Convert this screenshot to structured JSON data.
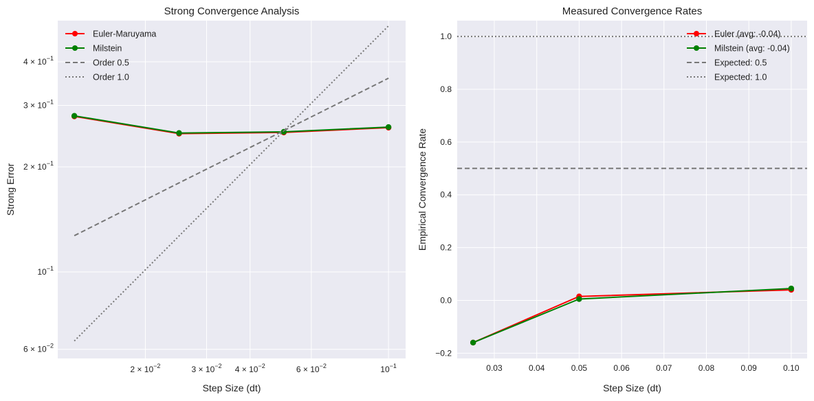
{
  "chart_data": [
    {
      "type": "line",
      "title": "Strong Convergence Analysis",
      "xlabel": "Step Size (dt)",
      "ylabel": "Strong Error",
      "xscale": "log",
      "yscale": "log",
      "xlim": [
        0.0112,
        0.112
      ],
      "ylim": [
        0.0565,
        0.525
      ],
      "grid": true,
      "legend_position": "top-left",
      "x": [
        0.0125,
        0.025,
        0.05,
        0.1
      ],
      "xticks": [
        {
          "value": 0.02,
          "label": "2 × 10^-2",
          "mant": "2",
          "exp": "−2"
        },
        {
          "value": 0.03,
          "label": "3 × 10^-2",
          "mant": "3",
          "exp": "−2"
        },
        {
          "value": 0.04,
          "label": "4 × 10^-2",
          "mant": "4",
          "exp": "−2"
        },
        {
          "value": 0.06,
          "label": "6 × 10^-2",
          "mant": "6",
          "exp": "−2"
        },
        {
          "value": 0.1,
          "label": "10^-1",
          "mant": "",
          "exp": "−1"
        }
      ],
      "yticks": [
        {
          "value": 0.06,
          "label": "6 × 10^-2",
          "mant": "6",
          "exp": "−2"
        },
        {
          "value": 0.1,
          "label": "10^-1",
          "mant": "",
          "exp": "−1"
        },
        {
          "value": 0.2,
          "label": "2 × 10^-1",
          "mant": "2",
          "exp": "−1"
        },
        {
          "value": 0.3,
          "label": "3 × 10^-1",
          "mant": "3",
          "exp": "−1"
        },
        {
          "value": 0.4,
          "label": "4 × 10^-1",
          "mant": "4",
          "exp": "−1"
        }
      ],
      "series": [
        {
          "name": "Euler-Maruyama",
          "color": "#ff0000",
          "style": "solid",
          "marker": true,
          "values": [
            0.279,
            0.249,
            0.251,
            0.259
          ]
        },
        {
          "name": "Milstein",
          "color": "#008000",
          "style": "solid",
          "marker": true,
          "values": [
            0.28,
            0.25,
            0.252,
            0.26
          ]
        },
        {
          "name": "Order 0.5",
          "color": "#777777",
          "style": "dashed",
          "marker": false,
          "values": [
            0.127,
            0.18,
            0.254,
            0.359
          ]
        },
        {
          "name": "Order 1.0",
          "color": "#777777",
          "style": "dotted",
          "marker": false,
          "values": [
            0.0634,
            0.1268,
            0.2537,
            0.507
          ]
        }
      ]
    },
    {
      "type": "line",
      "title": "Measured Convergence Rates",
      "xlabel": "Step Size (dt)",
      "ylabel": "Empirical Convergence Rate",
      "xscale": "linear",
      "yscale": "linear",
      "xlim": [
        0.02125,
        0.10375
      ],
      "ylim": [
        -0.22,
        1.06
      ],
      "grid": true,
      "legend_position": "top-right",
      "xticks": [
        {
          "value": 0.03,
          "label": "0.03"
        },
        {
          "value": 0.04,
          "label": "0.04"
        },
        {
          "value": 0.05,
          "label": "0.05"
        },
        {
          "value": 0.06,
          "label": "0.06"
        },
        {
          "value": 0.07,
          "label": "0.07"
        },
        {
          "value": 0.08,
          "label": "0.08"
        },
        {
          "value": 0.09,
          "label": "0.09"
        },
        {
          "value": 0.1,
          "label": "0.10"
        }
      ],
      "yticks": [
        {
          "value": -0.2,
          "label": "−0.2"
        },
        {
          "value": 0.0,
          "label": "0.0"
        },
        {
          "value": 0.2,
          "label": "0.2"
        },
        {
          "value": 0.4,
          "label": "0.4"
        },
        {
          "value": 0.6,
          "label": "0.6"
        },
        {
          "value": 0.8,
          "label": "0.8"
        },
        {
          "value": 1.0,
          "label": "1.0"
        }
      ],
      "x": [
        0.025,
        0.05,
        0.1
      ],
      "series": [
        {
          "name": "Euler (avg: -0.04)",
          "color": "#ff0000",
          "style": "solid",
          "marker": true,
          "values": [
            -0.16,
            0.015,
            0.04
          ]
        },
        {
          "name": "Milstein (avg: -0.04)",
          "color": "#008000",
          "style": "solid",
          "marker": true,
          "values": [
            -0.16,
            0.005,
            0.045
          ]
        },
        {
          "name": "Expected: 0.5",
          "color": "#777777",
          "style": "dashed",
          "marker": false,
          "hline": 0.5
        },
        {
          "name": "Expected: 1.0",
          "color": "#777777",
          "style": "dotted",
          "marker": false,
          "hline": 1.0
        }
      ]
    }
  ]
}
